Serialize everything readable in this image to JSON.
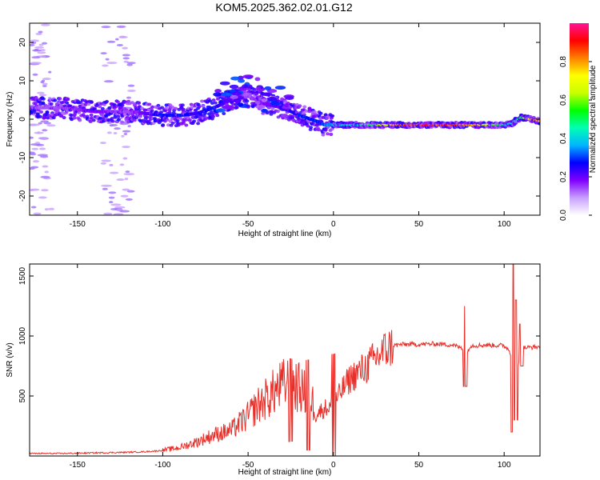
{
  "title": "KOM5.2025.362.02.01.G12",
  "chart_data": [
    {
      "type": "heatmap",
      "xlabel": "Height of straight line (km)",
      "ylabel": "Frequency (Hz)",
      "xlim": [
        -178,
        121
      ],
      "ylim": [
        -25,
        25
      ],
      "xticks": [
        -150,
        -100,
        -50,
        0,
        50,
        100
      ],
      "yticks": [
        -20,
        -10,
        0,
        10,
        20
      ],
      "colorbar": {
        "label": "Normalized spectral amplitude",
        "range": [
          0,
          1
        ],
        "ticks": [
          "0.0",
          "0.2",
          "0.4",
          "0.6",
          "0.8"
        ],
        "colors": [
          "#ffffff",
          "#c8a0ff",
          "#8000ff",
          "#0000ff",
          "#00b4ff",
          "#00ffb4",
          "#00ff00",
          "#c8ff00",
          "#ffff00",
          "#ff8000",
          "#ff0000",
          "#ff1493"
        ]
      },
      "ridge": {
        "x": [
          -178,
          -160,
          -140,
          -120,
          -100,
          -90,
          -80,
          -70,
          -60,
          -50,
          -40,
          -30,
          -20,
          -10,
          -5,
          0,
          20,
          40,
          60,
          80,
          95,
          100,
          105,
          110,
          121
        ],
        "y": [
          3,
          3,
          2,
          2,
          1,
          1,
          1.5,
          3,
          5,
          6,
          4,
          3,
          1,
          -0.5,
          -1.5,
          -1.5,
          -1.5,
          -1.5,
          -1.5,
          -1.5,
          -1.5,
          -1.5,
          -1,
          0.5,
          -0.5
        ],
        "amplitude": [
          0.15,
          0.15,
          0.2,
          0.15,
          0.3,
          0.3,
          0.25,
          0.3,
          0.2,
          0.15,
          0.2,
          0.25,
          0.3,
          0.3,
          0.35,
          0.4,
          0.5,
          0.95,
          0.95,
          0.9,
          0.6,
          0.5,
          0.4,
          0.6,
          0.9
        ]
      },
      "background_scatter": {
        "x_ranges": [
          [
            -178,
            -165
          ],
          [
            -135,
            -118
          ]
        ],
        "y_range": [
          -25,
          25
        ],
        "amplitude": 0.05
      }
    },
    {
      "type": "line",
      "xlabel": "Height of straight line (km)",
      "ylabel": "SNR (v/v)",
      "xlim": [
        -178,
        121
      ],
      "ylim": [
        0,
        1600
      ],
      "xticks": [
        -150,
        -100,
        -50,
        0,
        50,
        100
      ],
      "yticks": [
        500,
        1000,
        1500
      ],
      "series": [
        {
          "color": "#e8302a",
          "x": [
            -178,
            -160,
            -140,
            -120,
            -110,
            -100,
            -90,
            -80,
            -70,
            -60,
            -55,
            -50,
            -45,
            -40,
            -35,
            -30,
            -25,
            -20,
            -15,
            -10,
            -5,
            0,
            5,
            10,
            15,
            20,
            25,
            30,
            35,
            40,
            50,
            60,
            70,
            75,
            78,
            80,
            90,
            100,
            103,
            105,
            106,
            108,
            110,
            115,
            121
          ],
          "y": [
            15,
            15,
            20,
            25,
            30,
            40,
            60,
            100,
            150,
            180,
            230,
            280,
            350,
            400,
            450,
            500,
            520,
            480,
            420,
            350,
            400,
            420,
            550,
            650,
            700,
            750,
            820,
            880,
            920,
            930,
            930,
            935,
            925,
            900,
            850,
            920,
            925,
            920,
            880,
            800,
            1000,
            750,
            900,
            905,
            910
          ]
        }
      ],
      "spikes": [
        {
          "x": -25,
          "min": 120,
          "max": 810
        },
        {
          "x": -15,
          "min": 50,
          "max": 800
        },
        {
          "x": 0,
          "min": 0,
          "max": 850
        },
        {
          "x": 77,
          "min": 580,
          "max": 1250
        },
        {
          "x": 105,
          "min": 200,
          "max": 1600
        },
        {
          "x": 107,
          "min": 300,
          "max": 1300
        },
        {
          "x": 110,
          "min": 750,
          "max": 1100
        }
      ]
    }
  ]
}
